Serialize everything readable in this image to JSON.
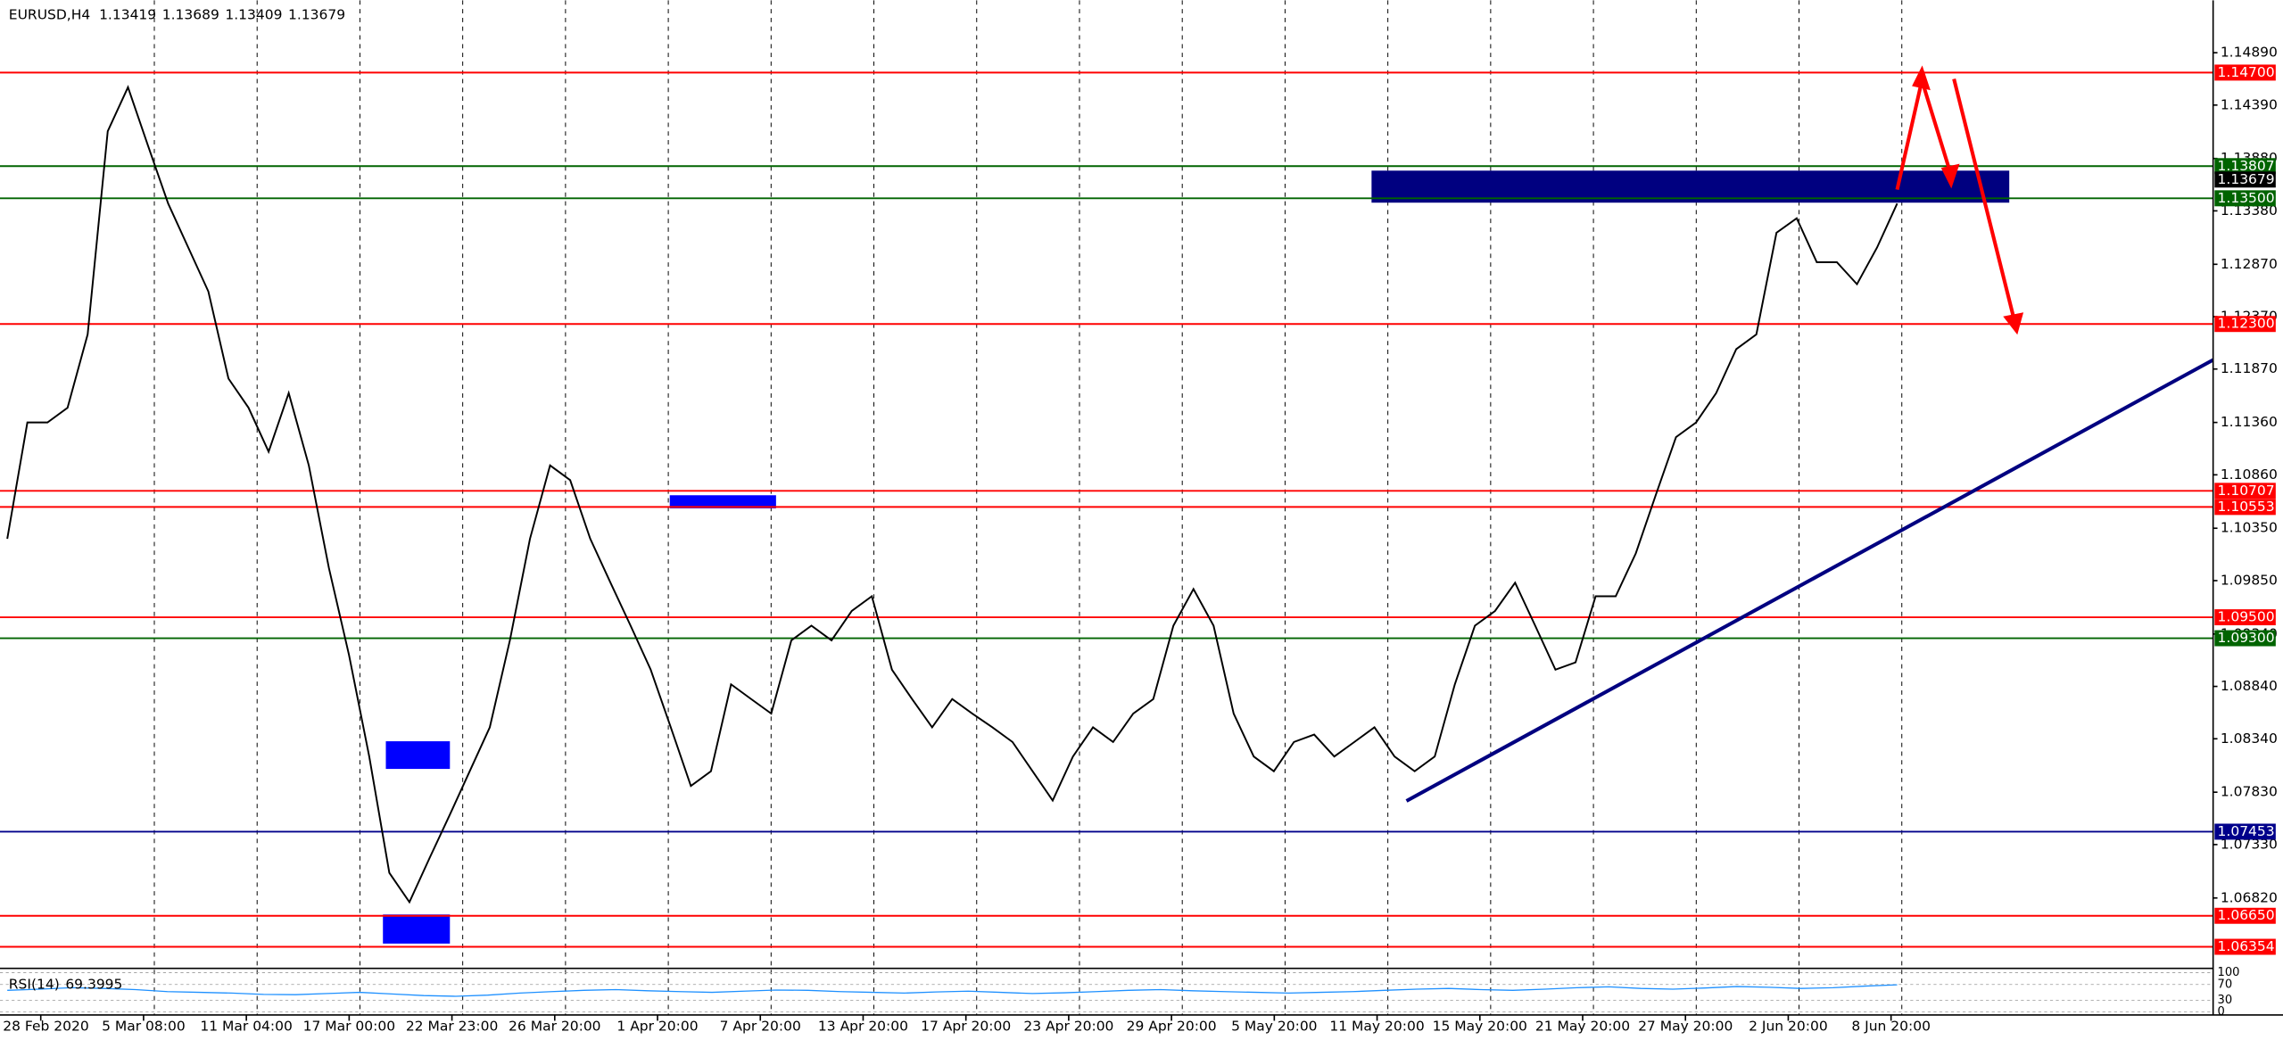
{
  "chart_data": {
    "type": "line",
    "title": "EURUSD,H4",
    "header_values": [
      1.13419,
      1.13689,
      1.13409,
      1.13679
    ],
    "categories": [
      "28 Feb 2020",
      "5 Mar 08:00",
      "11 Mar 04:00",
      "17 Mar 00:00",
      "22 Mar 23:00",
      "26 Mar 20:00",
      "1 Apr 20:00",
      "7 Apr 20:00",
      "13 Apr 20:00",
      "17 Apr 20:00",
      "23 Apr 20:00",
      "29 Apr 20:00",
      "5 May 20:00",
      "11 May 20:00",
      "15 May 20:00",
      "21 May 20:00",
      "27 May 20:00",
      "2 Jun 20:00",
      "8 Jun 20:00"
    ],
    "close_values": [
      1.1025,
      1.1136,
      1.1136,
      1.115,
      1.122,
      1.1414,
      1.1456,
      1.14,
      1.1345,
      1.1303,
      1.1261,
      1.1178,
      1.115,
      1.1108,
      1.1164,
      1.1095,
      1.0997,
      1.0914,
      1.0817,
      1.0706,
      1.0678,
      1.072,
      1.0761,
      1.0803,
      1.0845,
      1.0928,
      1.1025,
      1.1095,
      1.1081,
      1.1025,
      1.0983,
      1.0942,
      1.09,
      1.0845,
      1.0789,
      1.0803,
      1.0886,
      1.0872,
      1.0858,
      1.0928,
      1.0942,
      1.0928,
      1.0956,
      1.097,
      1.09,
      1.0872,
      1.0845,
      1.0872,
      1.0858,
      1.0845,
      1.0831,
      1.0803,
      1.0775,
      1.0817,
      1.0845,
      1.0831,
      1.0858,
      1.0872,
      1.0942,
      1.0977,
      1.0942,
      1.0858,
      1.0817,
      1.0803,
      1.0831,
      1.0838,
      1.0817,
      1.0831,
      1.0845,
      1.0817,
      1.0803,
      1.0817,
      1.0886,
      1.0942,
      1.0956,
      1.0983,
      1.0942,
      1.09,
      1.0907,
      1.097,
      1.097,
      1.1011,
      1.1067,
      1.1122,
      1.1136,
      1.1164,
      1.1206,
      1.122,
      1.1317,
      1.1331,
      1.1289,
      1.1289,
      1.1268,
      1.1303,
      1.1345
    ],
    "ylim": [
      1.0619,
      1.1539
    ],
    "yticks": [
      {
        "value": 1.1489,
        "label": "1.14890"
      },
      {
        "value": 1.1439,
        "label": "1.14390"
      },
      {
        "value": 1.1388,
        "label": "1.13880"
      },
      {
        "value": 1.1338,
        "label": "1.13380"
      },
      {
        "value": 1.1287,
        "label": "1.12870"
      },
      {
        "value": 1.1237,
        "label": "1.12370"
      },
      {
        "value": 1.1187,
        "label": "1.11870"
      },
      {
        "value": 1.1136,
        "label": "1.11360"
      },
      {
        "value": 1.1086,
        "label": "1.10860"
      },
      {
        "value": 1.1035,
        "label": "1.10350"
      },
      {
        "value": 1.0985,
        "label": "1.09850"
      },
      {
        "value": 1.0934,
        "label": "1.09340"
      },
      {
        "value": 1.0884,
        "label": "1.08840"
      },
      {
        "value": 1.0834,
        "label": "1.08340"
      },
      {
        "value": 1.0783,
        "label": "1.07830"
      },
      {
        "value": 1.0733,
        "label": "1.07330"
      },
      {
        "value": 1.0682,
        "label": "1.06820"
      }
    ],
    "color": "#000000",
    "levels": [
      {
        "value": 1.147,
        "label": "1.14700",
        "color": "#ff0000"
      },
      {
        "value": 1.13807,
        "label": "1.13807",
        "color": "#006400"
      },
      {
        "value": 1.135,
        "label": "1.13500",
        "color": "#006400"
      },
      {
        "value": 1.123,
        "label": "1.12300",
        "color": "#ff0000"
      },
      {
        "value": 1.10707,
        "label": "1.10707",
        "color": "#ff0000"
      },
      {
        "value": 1.10553,
        "label": "1.10553",
        "color": "#ff0000"
      },
      {
        "value": 1.095,
        "label": "1.09500",
        "color": "#ff0000"
      },
      {
        "value": 1.093,
        "label": "1.09300",
        "color": "#006400"
      },
      {
        "value": 1.07453,
        "label": "1.07453",
        "color": "#00008b"
      },
      {
        "value": 1.0665,
        "label": "1.06650",
        "color": "#ff0000"
      },
      {
        "value": 1.06354,
        "label": "1.06354",
        "color": "#ff0000"
      }
    ],
    "current_price": {
      "value": 1.13679,
      "label": "1.13679"
    },
    "rsi": {
      "label": "RSI(14)",
      "value": 69.3995,
      "color": "#1e90ff",
      "ylim": [
        0,
        100
      ],
      "ticks": [
        100,
        70,
        30,
        0
      ],
      "values": [
        55,
        58,
        62,
        60,
        57,
        52,
        50,
        48,
        45,
        44,
        47,
        50,
        46,
        42,
        40,
        43,
        48,
        52,
        55,
        57,
        54,
        52,
        50,
        53,
        56,
        55,
        52,
        50,
        48,
        51,
        53,
        50,
        47,
        49,
        52,
        55,
        57,
        54,
        52,
        50,
        48,
        50,
        52,
        55,
        58,
        60,
        57,
        55,
        58,
        62,
        64,
        60,
        58,
        61,
        65,
        63,
        60,
        62,
        66,
        69.3995
      ]
    }
  }
}
